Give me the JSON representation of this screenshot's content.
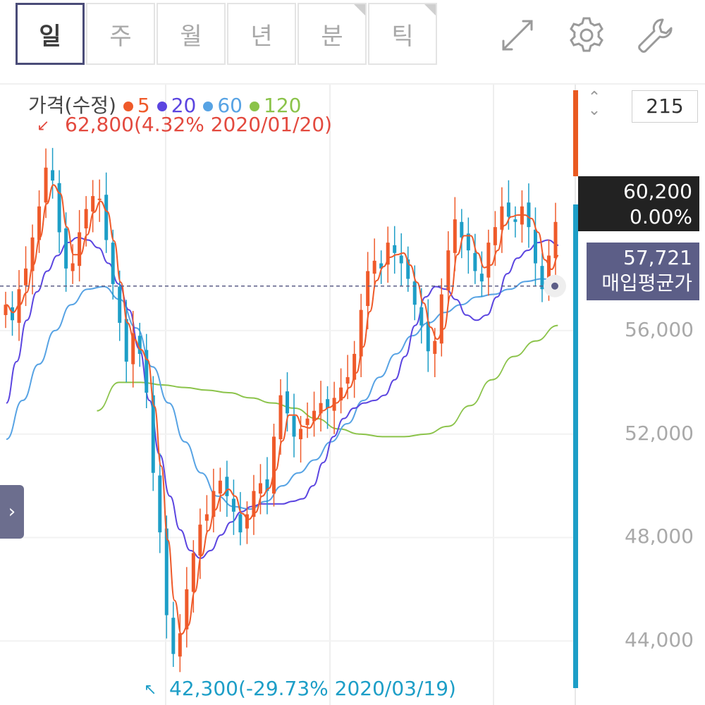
{
  "tabs": [
    "일",
    "주",
    "월",
    "년",
    "분",
    "틱"
  ],
  "active_tab": "일",
  "toolbar": {
    "icons": [
      "expand-icon",
      "gear-icon",
      "wrench-icon"
    ]
  },
  "bar_count": "215",
  "current_price": {
    "price": "60,200",
    "change": "0.00%"
  },
  "avg_price": {
    "price": "57,721",
    "label": "매입평균가"
  },
  "legend": {
    "title": "가격(수정)",
    "ma": [
      {
        "label": "5",
        "color": "#ef5a2a"
      },
      {
        "label": "20",
        "color": "#5b45e0"
      },
      {
        "label": "60",
        "color": "#57a3e4"
      },
      {
        "label": "120",
        "color": "#8bc34a"
      }
    ]
  },
  "high_label": "62,800(4.32% 2020/01/20)",
  "low_label": "42,300(-29.73% 2020/03/19)",
  "colors": {
    "up": "#ef5a2a",
    "down": "#1d9ec7",
    "accent": "#4a4c78"
  },
  "chart_data": {
    "type": "candlestick",
    "ylim": [
      41800,
      64800
    ],
    "y_ticks": [
      "56,000",
      "52,000",
      "48,000",
      "44,000"
    ],
    "y_tick_values": [
      56000,
      52000,
      48000,
      44000
    ],
    "avg_price_line": 57721,
    "current_price_value": 60200,
    "high": 62800,
    "low": 42300,
    "closes": [
      57000,
      56400,
      57600,
      58400,
      59600,
      60800,
      62300,
      61800,
      59800,
      58400,
      58600,
      59800,
      60700,
      61200,
      61100,
      59500,
      57800,
      56300,
      54800,
      55900,
      55100,
      53600,
      50500,
      48200,
      45000,
      43500,
      44300,
      46000,
      47400,
      48500,
      48900,
      49800,
      50200,
      49600,
      49000,
      48200,
      48900,
      49800,
      50100,
      49800,
      51900,
      53500,
      52800,
      51900,
      52200,
      52600,
      52900,
      53200,
      53000,
      53400,
      53800,
      54200,
      55100,
      56800,
      58300,
      58700,
      58400,
      59400,
      59000,
      58600,
      58000,
      57000,
      56200,
      55200,
      55600,
      57400,
      59100,
      60300,
      59600,
      59100,
      58300,
      57900,
      59400,
      60000,
      60800,
      60400,
      60200,
      60800,
      60000,
      58600,
      57600,
      58900,
      60200
    ],
    "ma20": [
      53200,
      54800,
      56400,
      57500,
      58300,
      58900,
      59400,
      59600,
      59500,
      59200,
      58600,
      57800,
      56800,
      55300,
      53300,
      51200,
      49600,
      48300,
      47500,
      47200,
      47500,
      48100,
      48600,
      49000,
      49200,
      49300,
      49300,
      49300,
      49400,
      49500,
      50000,
      50900,
      51900,
      52600,
      53000,
      53200,
      53300,
      53500,
      54100,
      55000,
      56200,
      57300,
      57700,
      57600,
      57200,
      56600,
      56400,
      56600,
      57300,
      58200,
      58800,
      59100,
      59400,
      59500,
      59300
    ],
    "ma60": [
      51800,
      53300,
      54700,
      56000,
      57000,
      57600,
      57700,
      57200,
      56100,
      54600,
      53200,
      51700,
      50500,
      49600,
      49200,
      49100,
      49400,
      50000,
      50500,
      51000,
      51700,
      52400,
      53300,
      54200,
      55100,
      55800,
      56300,
      56700,
      57000,
      57300,
      57400,
      57600,
      57900,
      58000,
      57900
    ],
    "ma120": [
      52900,
      54000,
      54000,
      53900,
      53800,
      53700,
      53600,
      53400,
      53200,
      53000,
      52600,
      52200,
      52000,
      51900,
      51900,
      52000,
      52300,
      53100,
      54100,
      55000,
      55600,
      56200
    ]
  }
}
